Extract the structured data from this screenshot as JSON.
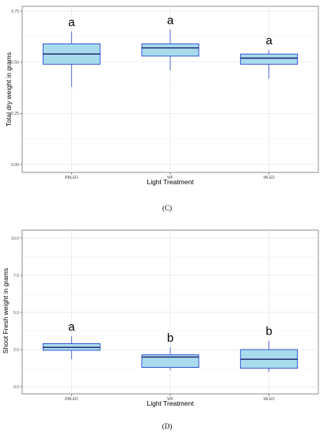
{
  "chart_data": [
    {
      "type": "box",
      "caption": "(C)",
      "xlabel": "Light Treatment",
      "ylabel": "Total dry weight in grams",
      "ylim": [
        0,
        0.85
      ],
      "y_ticks": [
        0.0,
        0.25,
        0.5,
        0.75
      ],
      "y_tick_labels": [
        "0.00",
        "0.25",
        "0.50",
        "0.75"
      ],
      "categories": [
        "RBLED",
        "WF",
        "WLED"
      ],
      "boxes": [
        {
          "category": "RBLED",
          "min": 0.38,
          "q1": 0.49,
          "median": 0.54,
          "q3": 0.59,
          "max": 0.65,
          "letter": "a"
        },
        {
          "category": "WF",
          "min": 0.46,
          "q1": 0.53,
          "median": 0.57,
          "q3": 0.59,
          "max": 0.66,
          "letter": "a"
        },
        {
          "category": "WLED",
          "min": 0.42,
          "q1": 0.49,
          "median": 0.52,
          "q3": 0.54,
          "max": 0.56,
          "letter": "a"
        }
      ],
      "grid": true
    },
    {
      "type": "box",
      "caption": "(D)",
      "xlabel": "Light Treatment",
      "ylabel": "Shoot Fresh weight  in grams",
      "ylim": [
        0,
        10.5
      ],
      "y_ticks": [
        0.0,
        2.5,
        5.0,
        7.5,
        10.0
      ],
      "y_tick_labels": [
        "0.0",
        "2.5",
        "5.0",
        "7.5",
        "10.0"
      ],
      "categories": [
        "RBLED",
        "WF",
        "WLED"
      ],
      "boxes": [
        {
          "category": "RBLED",
          "min": 1.85,
          "q1": 2.45,
          "median": 2.65,
          "q3": 2.9,
          "max": 3.4,
          "letter": "a"
        },
        {
          "category": "WF",
          "min": 1.1,
          "q1": 1.3,
          "median": 2.0,
          "q3": 2.15,
          "max": 2.65,
          "letter": "b"
        },
        {
          "category": "WLED",
          "min": 1.0,
          "q1": 1.25,
          "median": 1.85,
          "q3": 2.5,
          "max": 3.1,
          "letter": "b"
        }
      ],
      "grid": true
    }
  ]
}
